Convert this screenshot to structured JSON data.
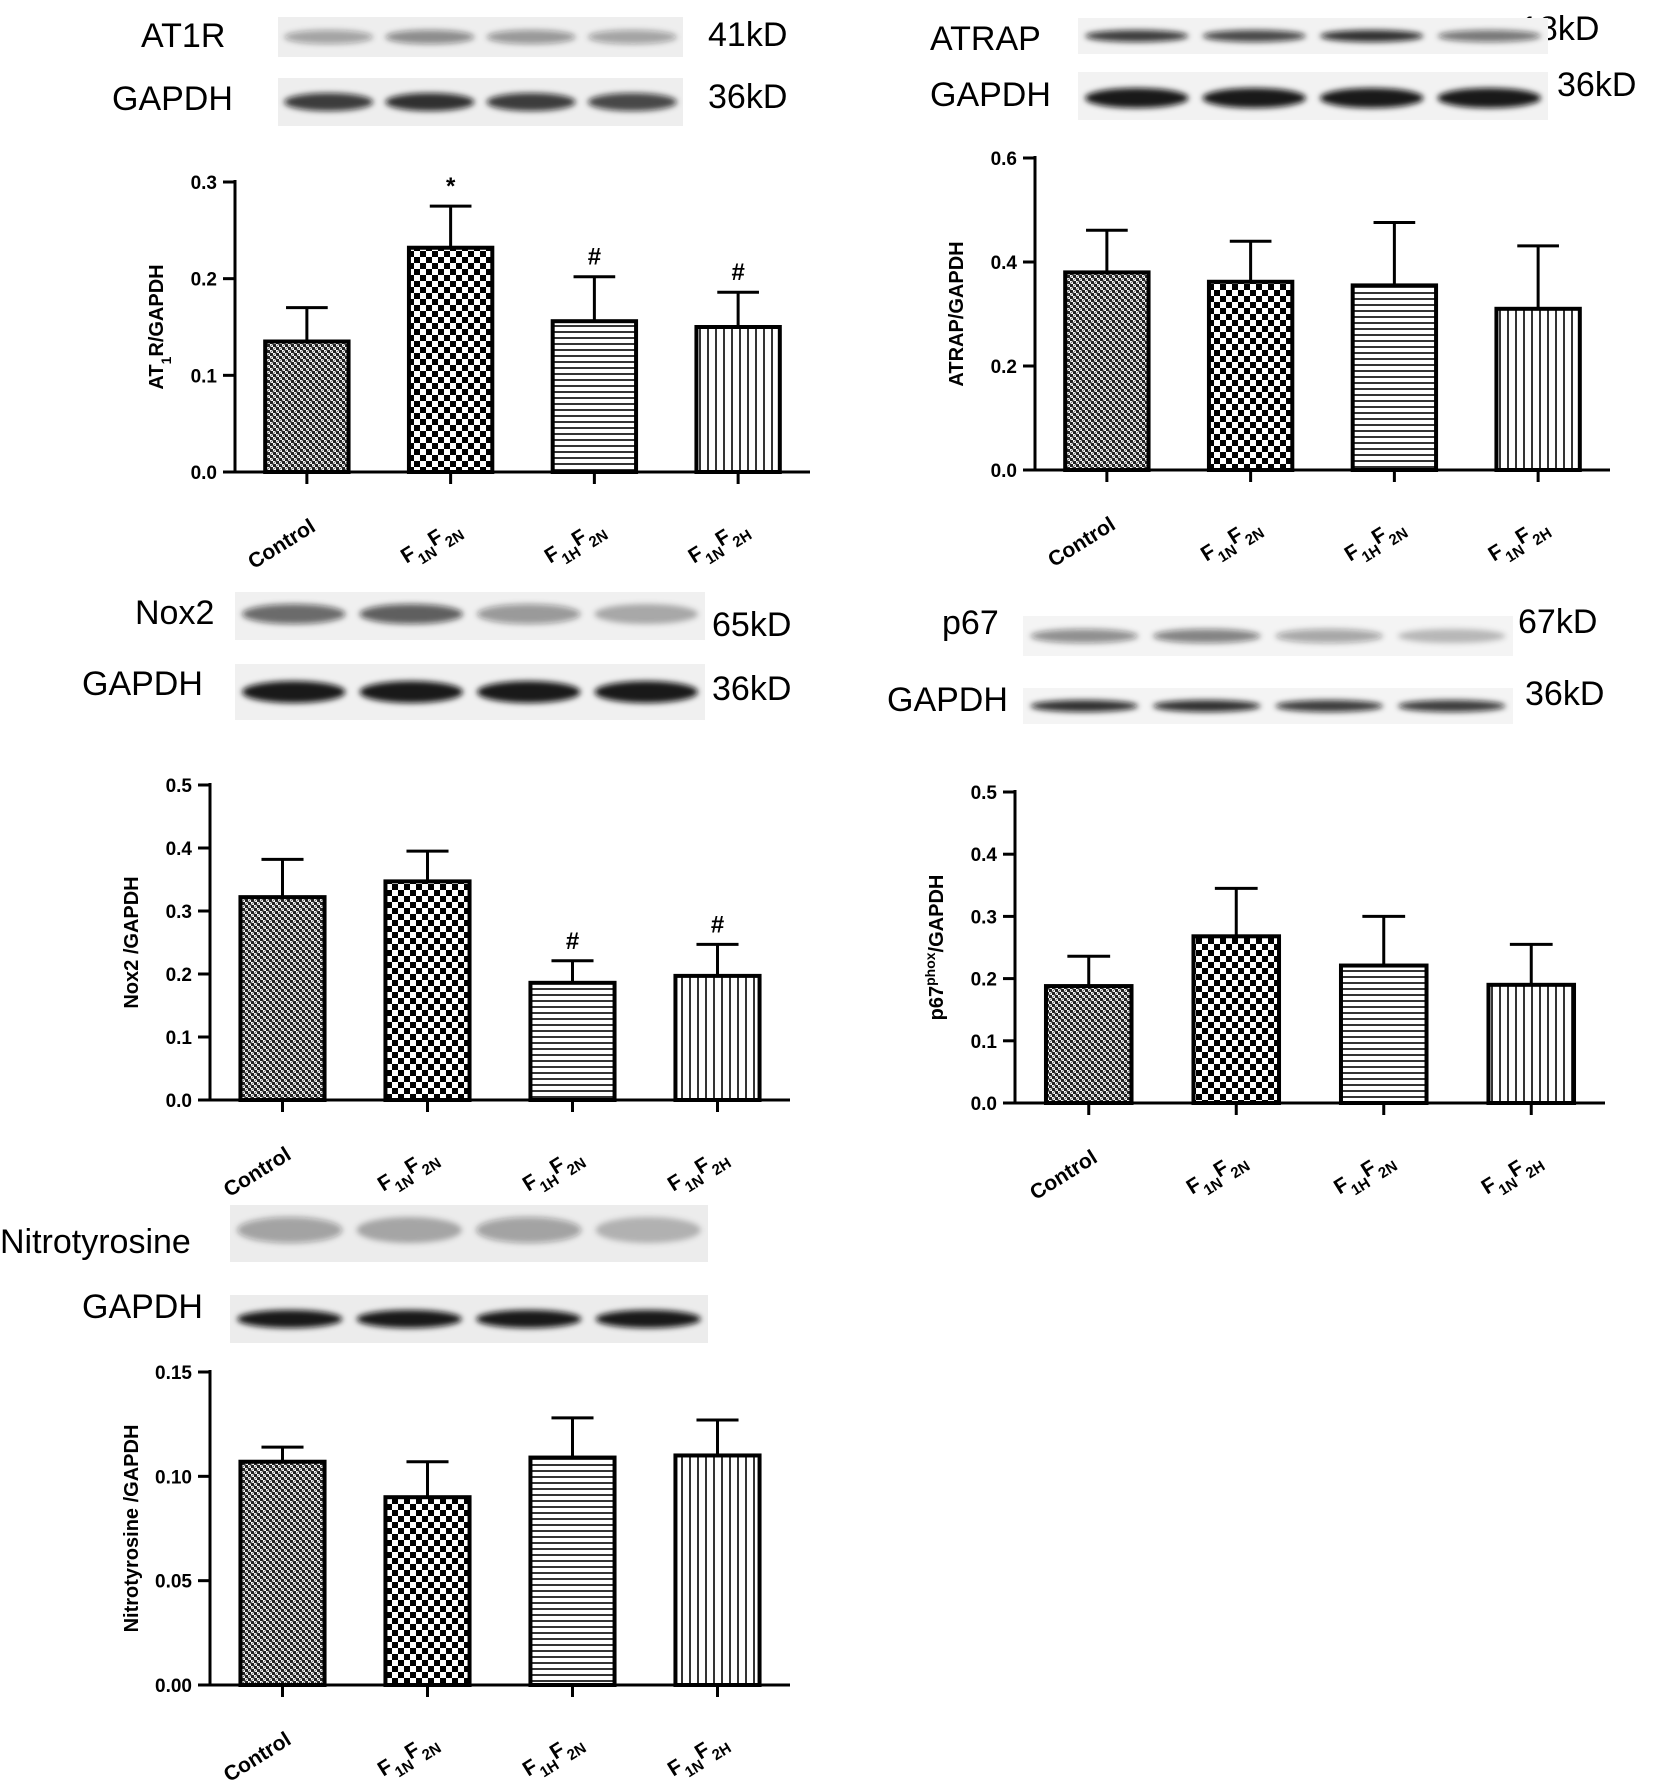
{
  "categories": [
    "Control",
    "F1NF2N",
    "F1HF2N",
    "F1NF2H"
  ],
  "patterns": [
    "dense-crosshatch",
    "checker",
    "horizontal",
    "vertical"
  ],
  "chart_data": [
    {
      "type": "bar",
      "id": "at1r",
      "blot": {
        "protein": "AT1R",
        "protein_kd": "41kD",
        "loading": "GAPDH",
        "loading_kd": "36kD",
        "protein_intensity": [
          0.35,
          0.45,
          0.4,
          0.35
        ],
        "loading_intensity": [
          0.8,
          0.85,
          0.8,
          0.75
        ]
      },
      "ylabel": {
        "main": "AT",
        "sub": "1",
        "rest": "R/GAPDH"
      },
      "ylim": [
        0,
        0.3
      ],
      "yticks": [
        "0.0",
        "0.1",
        "0.2",
        "0.3"
      ],
      "tick_values": [
        0,
        0.1,
        0.2,
        0.3
      ],
      "values": [
        0.135,
        0.232,
        0.156,
        0.15
      ],
      "errors": [
        0.035,
        0.043,
        0.046,
        0.036
      ],
      "annotations": [
        "",
        "*",
        "#",
        "#"
      ]
    },
    {
      "type": "bar",
      "id": "atrap",
      "blot": {
        "protein": "ATRAP",
        "protein_kd": "18kD",
        "loading": "GAPDH",
        "loading_kd": "36kD",
        "protein_intensity": [
          0.8,
          0.75,
          0.85,
          0.55
        ],
        "loading_intensity": [
          0.95,
          0.95,
          0.95,
          0.95
        ]
      },
      "ylabel": {
        "main": "ATRAP/GAPDH",
        "sub": "",
        "rest": ""
      },
      "ylim": [
        0,
        0.6
      ],
      "yticks": [
        "0.0",
        "0.2",
        "0.4",
        "0.6"
      ],
      "tick_values": [
        0,
        0.2,
        0.4,
        0.6
      ],
      "values": [
        0.38,
        0.362,
        0.355,
        0.31
      ],
      "errors": [
        0.081,
        0.078,
        0.121,
        0.121
      ],
      "annotations": [
        "",
        "",
        "",
        ""
      ]
    },
    {
      "type": "bar",
      "id": "nox2",
      "blot": {
        "protein": "Nox2",
        "protein_kd": "65kD",
        "loading": "GAPDH",
        "loading_kd": "36kD",
        "protein_intensity": [
          0.6,
          0.65,
          0.4,
          0.3
        ],
        "loading_intensity": [
          0.95,
          0.95,
          0.95,
          0.95
        ]
      },
      "ylabel": {
        "main": "Nox2 /GAPDH",
        "sub": "",
        "rest": ""
      },
      "ylim": [
        0,
        0.5
      ],
      "yticks": [
        "0.0",
        "0.1",
        "0.2",
        "0.3",
        "0.4",
        "0.5"
      ],
      "tick_values": [
        0,
        0.1,
        0.2,
        0.3,
        0.4,
        0.5
      ],
      "values": [
        0.322,
        0.347,
        0.186,
        0.197
      ],
      "errors": [
        0.06,
        0.048,
        0.035,
        0.05
      ],
      "annotations": [
        "",
        "",
        "#",
        "#"
      ]
    },
    {
      "type": "bar",
      "id": "p67",
      "blot": {
        "protein": "p67",
        "protein_kd": "67kD",
        "loading": "GAPDH",
        "loading_kd": "36kD",
        "protein_intensity": [
          0.45,
          0.5,
          0.35,
          0.25
        ],
        "loading_intensity": [
          0.85,
          0.85,
          0.8,
          0.8
        ]
      },
      "ylabel": {
        "main": "p67",
        "sup": "phox",
        "rest": "/GAPDH"
      },
      "ylim": [
        0,
        0.5
      ],
      "yticks": [
        "0.0",
        "0.1",
        "0.2",
        "0.3",
        "0.4",
        "0.5"
      ],
      "tick_values": [
        0,
        0.1,
        0.2,
        0.3,
        0.4,
        0.5
      ],
      "values": [
        0.188,
        0.268,
        0.221,
        0.19
      ],
      "errors": [
        0.048,
        0.077,
        0.079,
        0.065
      ],
      "annotations": [
        "",
        "",
        "",
        ""
      ]
    },
    {
      "type": "bar",
      "id": "nitrotyrosine",
      "blot": {
        "protein": "Nitrotyrosine",
        "protein_kd": "",
        "loading": "GAPDH",
        "loading_kd": "",
        "protein_intensity": [
          0.35,
          0.3,
          0.35,
          0.25
        ],
        "loading_intensity": [
          0.95,
          0.95,
          0.95,
          0.95
        ]
      },
      "ylabel": {
        "main": "Nitrotyrosine /GAPDH",
        "sub": "",
        "rest": ""
      },
      "ylim": [
        0,
        0.15
      ],
      "yticks": [
        "0.00",
        "0.05",
        "0.10",
        "0.15"
      ],
      "tick_values": [
        0,
        0.05,
        0.1,
        0.15
      ],
      "values": [
        0.107,
        0.09,
        0.109,
        0.11
      ],
      "errors": [
        0.007,
        0.017,
        0.019,
        0.017
      ],
      "annotations": [
        "",
        "",
        "",
        ""
      ]
    }
  ]
}
